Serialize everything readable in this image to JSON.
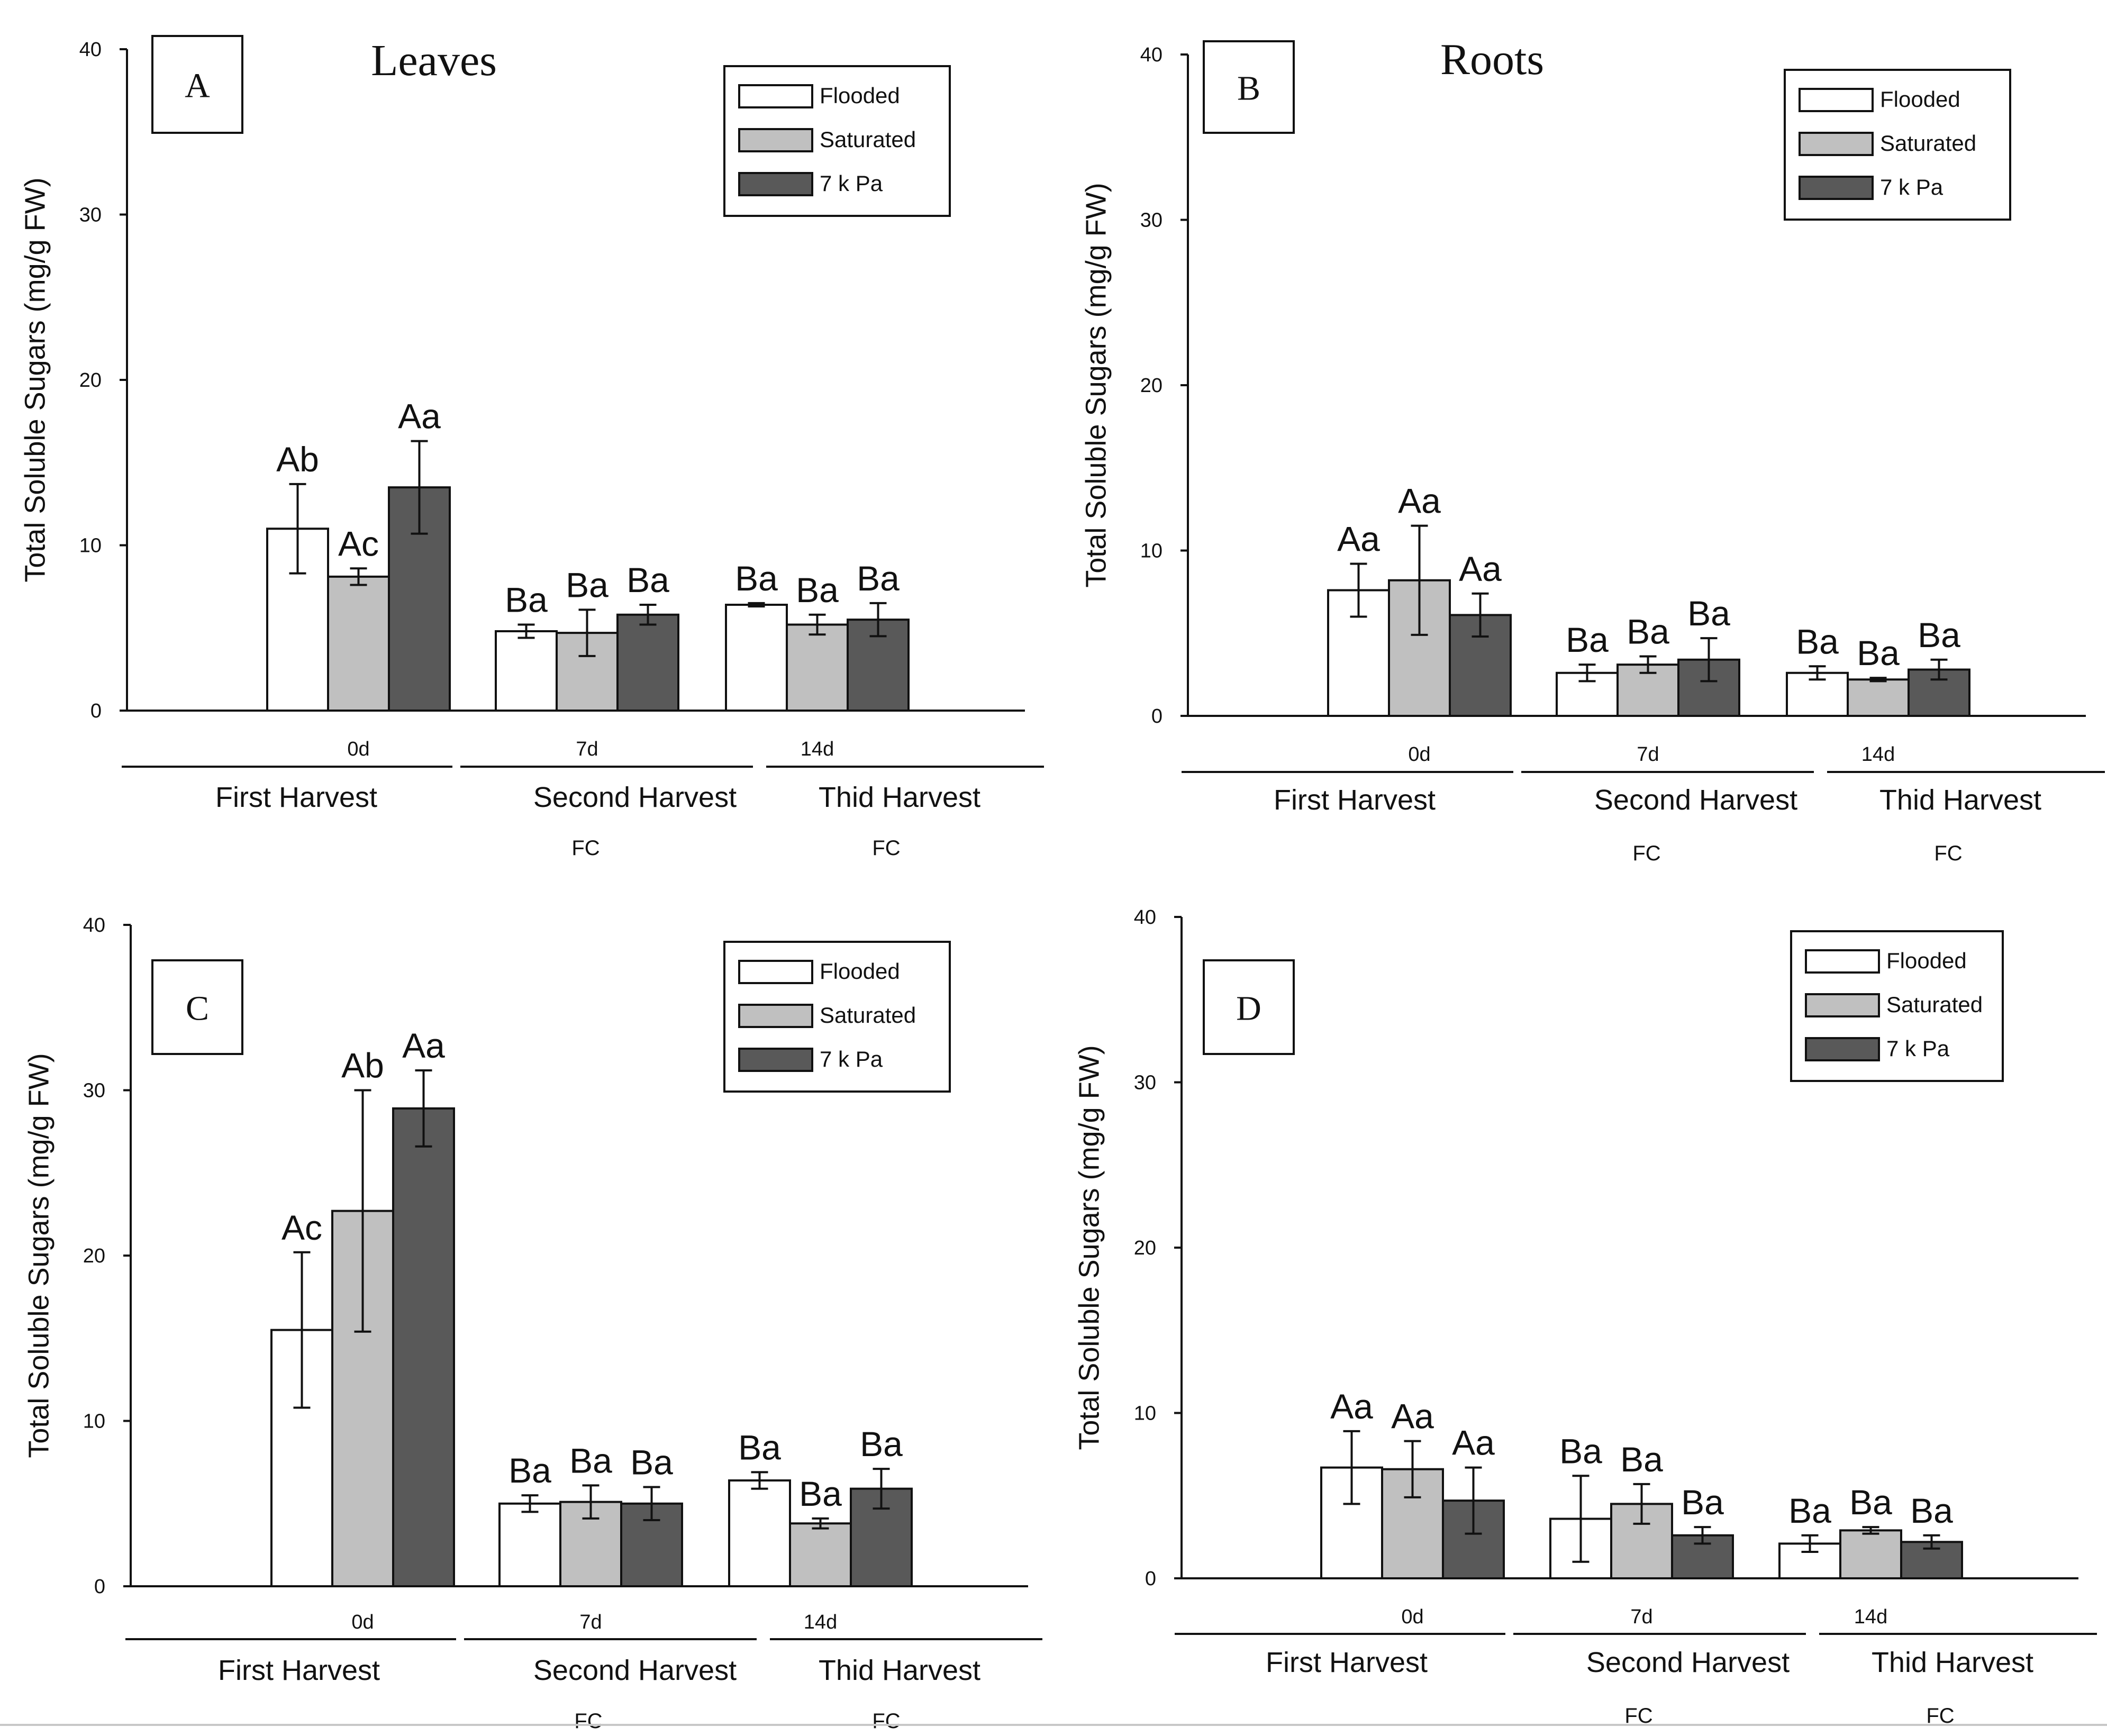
{
  "figure": {
    "rule_color": "#c8c8c8"
  },
  "chart_data": [
    {
      "type": "bar",
      "panel_letter": "A",
      "title": "Leaves",
      "ylabel": "Total Soluble Sugars (mg/g FW)",
      "ylim": [
        0,
        40
      ],
      "yticks": [
        "0",
        "10",
        "20",
        "30",
        "40"
      ],
      "categories": [
        "0d",
        "7d",
        "14d"
      ],
      "harvest_labels": [
        "First Harvest",
        "Second Harvest",
        "Thid Harvest"
      ],
      "condition_labels": [
        "",
        "FC",
        "FC"
      ],
      "series": [
        {
          "name": "Flooded",
          "color": "#ffffff",
          "values": [
            11.0,
            4.8,
            6.4
          ],
          "errors": [
            2.7,
            0.4,
            0.1
          ],
          "letters": [
            "Ab",
            "Ba",
            "Ba"
          ]
        },
        {
          "name": "Saturated",
          "color": "#c0c0c0",
          "values": [
            8.1,
            4.7,
            5.2
          ],
          "errors": [
            0.5,
            1.4,
            0.6
          ],
          "letters": [
            "Ac",
            "Ba",
            "Ba"
          ]
        },
        {
          "name": "7 k Pa",
          "color": "#595959",
          "values": [
            13.5,
            5.8,
            5.5
          ],
          "errors": [
            2.8,
            0.6,
            1.0
          ],
          "letters": [
            "Aa",
            "Ba",
            "Ba"
          ]
        }
      ],
      "legend": "top-right"
    },
    {
      "type": "bar",
      "panel_letter": "B",
      "title": "Roots",
      "ylabel": "Total Soluble Sugars (mg/g FW)",
      "ylim": [
        0,
        40
      ],
      "yticks": [
        "0",
        "10",
        "20",
        "30",
        "40"
      ],
      "categories": [
        "0d",
        "7d",
        "14d"
      ],
      "harvest_labels": [
        "First Harvest",
        "Second Harvest",
        "Thid Harvest"
      ],
      "condition_labels": [
        "",
        "FC",
        "FC"
      ],
      "series": [
        {
          "name": "Flooded",
          "color": "#ffffff",
          "values": [
            7.6,
            2.6,
            2.6
          ],
          "errors": [
            1.6,
            0.5,
            0.4
          ],
          "letters": [
            "Aa",
            "Ba",
            "Ba"
          ]
        },
        {
          "name": "Saturated",
          "color": "#c0c0c0",
          "values": [
            8.2,
            3.1,
            2.2
          ],
          "errors": [
            3.3,
            0.5,
            0.1
          ],
          "letters": [
            "Aa",
            "Ba",
            "Ba"
          ]
        },
        {
          "name": "7 k Pa",
          "color": "#595959",
          "values": [
            6.1,
            3.4,
            2.8
          ],
          "errors": [
            1.3,
            1.3,
            0.6
          ],
          "letters": [
            "Aa",
            "Ba",
            "Ba"
          ]
        }
      ],
      "legend": "top-right"
    },
    {
      "type": "bar",
      "panel_letter": "C",
      "title": "",
      "ylabel": "Total Soluble Sugars (mg/g FW)",
      "ylim": [
        0,
        40
      ],
      "yticks": [
        "0",
        "10",
        "20",
        "30",
        "40"
      ],
      "categories": [
        "0d",
        "7d",
        "14d"
      ],
      "harvest_labels": [
        "First Harvest",
        "Second Harvest",
        "Thid Harvest"
      ],
      "condition_labels": [
        "",
        "FC",
        "FC"
      ],
      "series": [
        {
          "name": "Flooded",
          "color": "#ffffff",
          "values": [
            15.5,
            5.0,
            6.4
          ],
          "errors": [
            4.7,
            0.5,
            0.5
          ],
          "letters": [
            "Ac",
            "Ba",
            "Ba"
          ]
        },
        {
          "name": "Saturated",
          "color": "#c0c0c0",
          "values": [
            22.7,
            5.1,
            3.8
          ],
          "errors": [
            7.3,
            1.0,
            0.3
          ],
          "letters": [
            "Ab",
            "Ba",
            "Ba"
          ]
        },
        {
          "name": "7 k Pa",
          "color": "#595959",
          "values": [
            28.9,
            5.0,
            5.9
          ],
          "errors": [
            2.3,
            1.0,
            1.2
          ],
          "letters": [
            "Aa",
            "Ba",
            "Ba"
          ]
        }
      ],
      "legend": "top-right"
    },
    {
      "type": "bar",
      "panel_letter": "D",
      "title": "",
      "ylabel": "Total Soluble Sugars (mg/g FW)",
      "ylim": [
        0,
        40
      ],
      "yticks": [
        "0",
        "10",
        "20",
        "30",
        "40"
      ],
      "categories": [
        "0d",
        "7d",
        "14d"
      ],
      "harvest_labels": [
        "First Harvest",
        "Second Harvest",
        "Thid Harvest"
      ],
      "condition_labels": [
        "",
        "FC",
        "FC"
      ],
      "series": [
        {
          "name": "Flooded",
          "color": "#ffffff",
          "values": [
            6.7,
            3.6,
            2.1
          ],
          "errors": [
            2.2,
            2.6,
            0.5
          ],
          "letters": [
            "Aa",
            "Ba",
            "Ba"
          ]
        },
        {
          "name": "Saturated",
          "color": "#c0c0c0",
          "values": [
            6.6,
            4.5,
            2.9
          ],
          "errors": [
            1.7,
            1.2,
            0.2
          ],
          "letters": [
            "Aa",
            "Ba",
            "Ba"
          ]
        },
        {
          "name": "7 k Pa",
          "color": "#595959",
          "values": [
            4.7,
            2.6,
            2.2
          ],
          "errors": [
            2.0,
            0.5,
            0.4
          ],
          "letters": [
            "Aa",
            "Ba",
            "Ba"
          ]
        }
      ],
      "legend": "top-right"
    }
  ]
}
